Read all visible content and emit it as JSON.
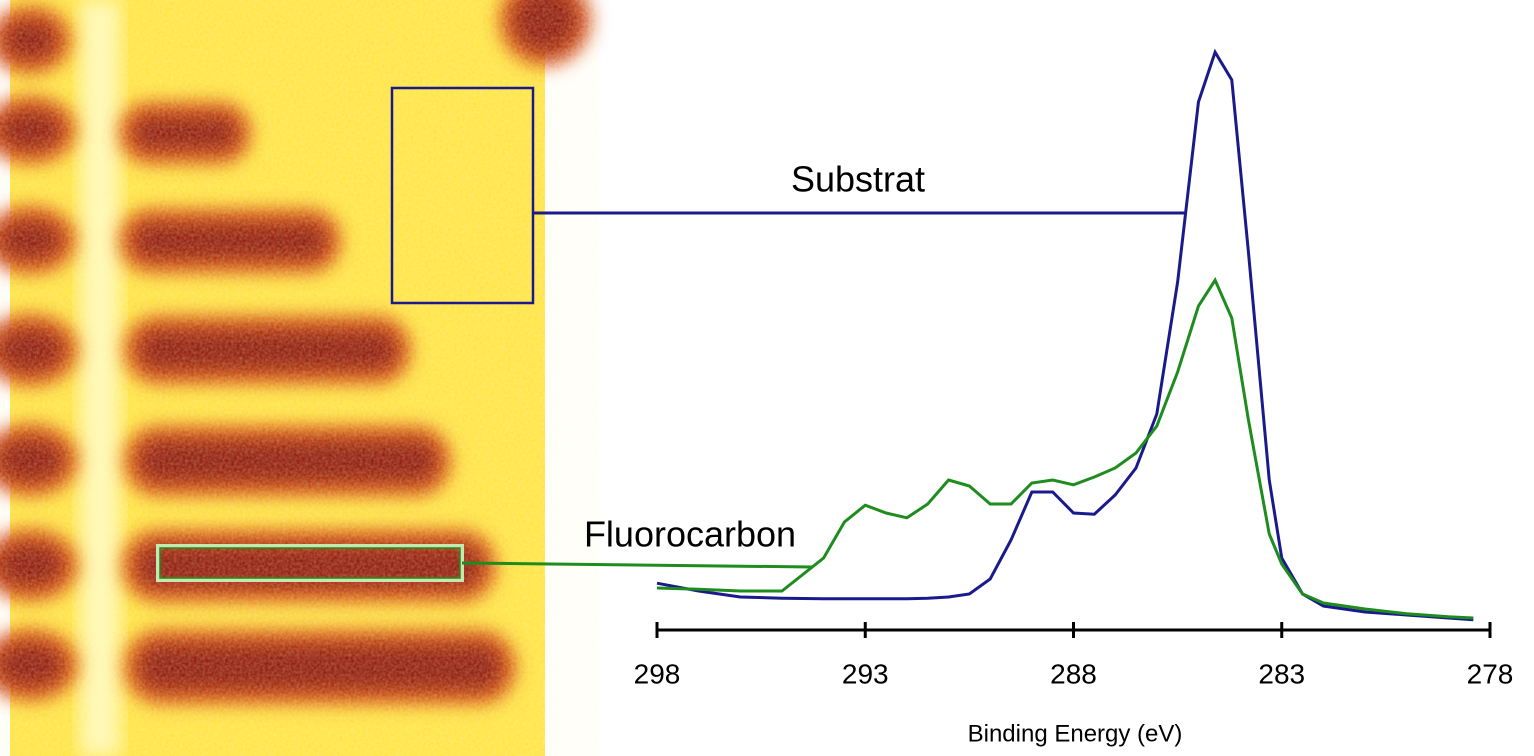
{
  "chart_data": {
    "type": "line",
    "xlabel": "Binding Energy (eV)",
    "xlim": [
      298,
      278
    ],
    "xticks": [
      298,
      293,
      288,
      283,
      278
    ],
    "ylim": [
      0,
      100
    ],
    "x": [
      298,
      297,
      296,
      295,
      294,
      293.5,
      293,
      292.5,
      292,
      291.5,
      291,
      290.5,
      290,
      289.5,
      289,
      288.5,
      288,
      287.5,
      287,
      286.5,
      286,
      285.5,
      285,
      284.6,
      284.2,
      283.8,
      283.3,
      283,
      282.5,
      282,
      281,
      280,
      279,
      278.4
    ],
    "series": [
      {
        "name": "Substrat",
        "color": "#1a1a8c",
        "values": [
          7.8,
          6.5,
          5.5,
          5.3,
          5.2,
          5.2,
          5.2,
          5.2,
          5.2,
          5.3,
          5.5,
          6,
          8.5,
          15,
          23,
          23,
          19.5,
          19.3,
          22.5,
          27,
          36,
          58,
          88,
          96.3,
          91.7,
          63,
          25,
          12,
          6,
          4,
          3,
          2.5,
          2,
          1.7
        ]
      },
      {
        "name": "Fluorocarbon",
        "color": "#1e8c1e",
        "values": [
          7,
          6.8,
          6.5,
          6.5,
          12,
          18,
          20.8,
          19.5,
          18.7,
          21,
          25,
          24,
          21,
          21,
          24.5,
          25,
          24.2,
          25.5,
          27,
          29.5,
          34,
          43,
          54,
          58.3,
          52,
          35,
          16,
          11,
          6,
          4.5,
          3.5,
          2.7,
          2.2,
          2
        ]
      }
    ]
  }
}
